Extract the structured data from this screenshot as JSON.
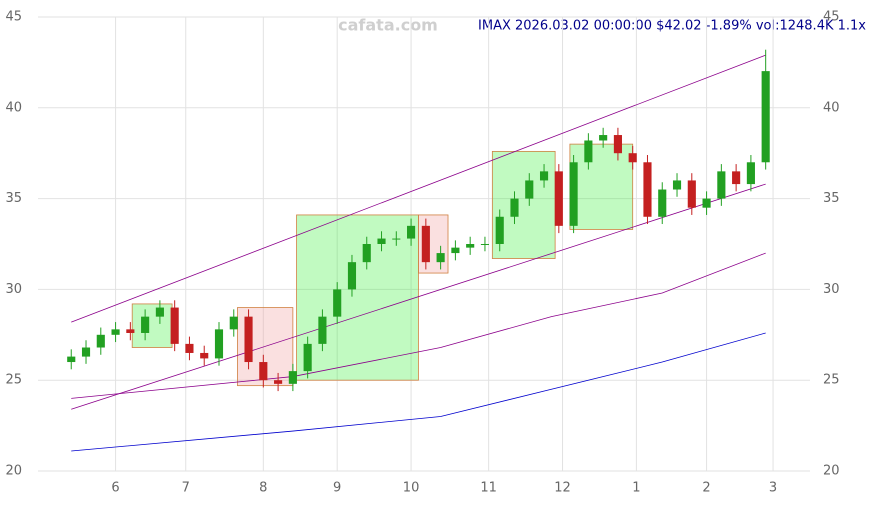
{
  "chart_data": {
    "type": "candlestick",
    "title": "IMAX 2026.03.02 00:00:00 $42.02 -1.89% vol:1248.4K 1.1x",
    "watermark": "cafata.com",
    "x": [
      0,
      4,
      8,
      12,
      16,
      20,
      24,
      28,
      32,
      36,
      40,
      44,
      48,
      52,
      56,
      60,
      64,
      68,
      72,
      76,
      80,
      84,
      88,
      92,
      96,
      100,
      104,
      108,
      112,
      116,
      120,
      124,
      128,
      132,
      136,
      140,
      144,
      148,
      152,
      156,
      160,
      164,
      168,
      172,
      176,
      180,
      184,
      188
    ],
    "open": [
      26.0,
      26.3,
      26.8,
      27.5,
      27.8,
      27.6,
      28.5,
      29.0,
      27.0,
      26.5,
      26.2,
      27.8,
      28.5,
      26.0,
      25.0,
      24.8,
      25.5,
      27.0,
      28.5,
      30.0,
      31.5,
      32.5,
      32.8,
      32.8,
      33.5,
      31.5,
      32.0,
      32.3,
      32.5,
      32.5,
      34.0,
      35.0,
      36.0,
      36.5,
      33.5,
      37.0,
      38.2,
      38.5,
      37.5,
      37.0,
      34.0,
      35.5,
      36.0,
      34.5,
      35.0,
      36.5,
      35.8,
      37.0
    ],
    "high": [
      26.7,
      27.2,
      27.9,
      28.2,
      28.2,
      28.9,
      29.4,
      29.4,
      27.4,
      26.9,
      28.2,
      28.9,
      28.9,
      26.4,
      25.4,
      25.9,
      27.4,
      28.9,
      30.4,
      31.9,
      32.9,
      33.2,
      33.2,
      33.9,
      33.9,
      32.4,
      32.7,
      32.9,
      32.9,
      34.4,
      35.4,
      36.4,
      36.9,
      36.9,
      37.4,
      38.6,
      38.9,
      38.9,
      37.9,
      37.4,
      35.9,
      36.4,
      36.4,
      35.4,
      36.9,
      36.9,
      37.4,
      43.2
    ],
    "low": [
      25.6,
      25.9,
      26.4,
      27.1,
      27.2,
      27.2,
      28.1,
      26.6,
      26.1,
      25.8,
      25.8,
      27.4,
      25.6,
      24.6,
      24.4,
      24.4,
      25.1,
      26.6,
      28.1,
      29.6,
      31.1,
      32.1,
      32.4,
      32.4,
      31.1,
      31.1,
      31.6,
      31.9,
      32.1,
      32.1,
      33.6,
      34.6,
      35.6,
      33.1,
      33.1,
      36.6,
      37.8,
      37.1,
      36.6,
      33.6,
      33.6,
      35.1,
      34.1,
      34.1,
      34.6,
      35.4,
      35.4,
      36.6
    ],
    "close": [
      26.3,
      26.8,
      27.5,
      27.8,
      27.6,
      28.5,
      29.0,
      27.0,
      26.5,
      26.2,
      27.8,
      28.5,
      26.0,
      25.0,
      24.8,
      25.5,
      27.0,
      28.5,
      30.0,
      31.5,
      32.5,
      32.8,
      32.8,
      33.5,
      31.5,
      32.0,
      32.3,
      32.5,
      32.5,
      34.0,
      35.0,
      36.0,
      36.5,
      33.5,
      37.0,
      38.2,
      38.5,
      37.5,
      37.0,
      34.0,
      35.5,
      36.0,
      34.5,
      35.0,
      36.5,
      35.8,
      37.0,
      42.02
    ],
    "up_color": "#22a022",
    "down_color": "#c42020",
    "overlays": [
      {
        "color": "#8b008b",
        "x": [
          0,
          188
        ],
        "values": [
          28.2,
          42.9
        ]
      },
      {
        "color": "#8b008b",
        "x": [
          0,
          188
        ],
        "values": [
          23.4,
          35.8
        ]
      },
      {
        "color": "#8b008b",
        "x": [
          0,
          60,
          100,
          130,
          160,
          188
        ],
        "values": [
          24.0,
          25.2,
          26.8,
          28.5,
          29.8,
          32.0
        ]
      },
      {
        "color": "#0000cd",
        "x": [
          0,
          60,
          100,
          130,
          160,
          188
        ],
        "values": [
          21.1,
          22.2,
          23.0,
          24.5,
          26.0,
          27.6
        ]
      }
    ],
    "zones": [
      {
        "color": "#33ee33",
        "x": [
          16.5,
          27.3
        ],
        "y": [
          26.8,
          29.2
        ]
      },
      {
        "color": "#ee9999",
        "x": [
          45,
          60
        ],
        "y": [
          24.7,
          29.0
        ]
      },
      {
        "color": "#33ee33",
        "x": [
          61,
          94
        ],
        "y": [
          25.0,
          34.1
        ]
      },
      {
        "color": "#ee9999",
        "x": [
          94,
          102
        ],
        "y": [
          30.9,
          34.1
        ]
      },
      {
        "color": "#33ee33",
        "x": [
          114,
          131
        ],
        "y": [
          31.7,
          37.6
        ]
      },
      {
        "color": "#33ee33",
        "x": [
          135,
          152
        ],
        "y": [
          33.3,
          38.0
        ]
      }
    ],
    "xlim": [
      -9,
      200
    ],
    "xticks": [
      {
        "value": 12,
        "label": "6"
      },
      {
        "value": 31,
        "label": "7"
      },
      {
        "value": 52,
        "label": "8"
      },
      {
        "value": 72,
        "label": "9"
      },
      {
        "value": 92,
        "label": "10"
      },
      {
        "value": 113,
        "label": "11"
      },
      {
        "value": 133,
        "label": "12"
      },
      {
        "value": 153,
        "label": "1"
      },
      {
        "value": 172,
        "label": "2"
      },
      {
        "value": 190,
        "label": "3"
      }
    ],
    "ylim": [
      20,
      45
    ],
    "yticks": [
      20,
      25,
      30,
      35,
      40,
      45
    ],
    "grid": true
  }
}
